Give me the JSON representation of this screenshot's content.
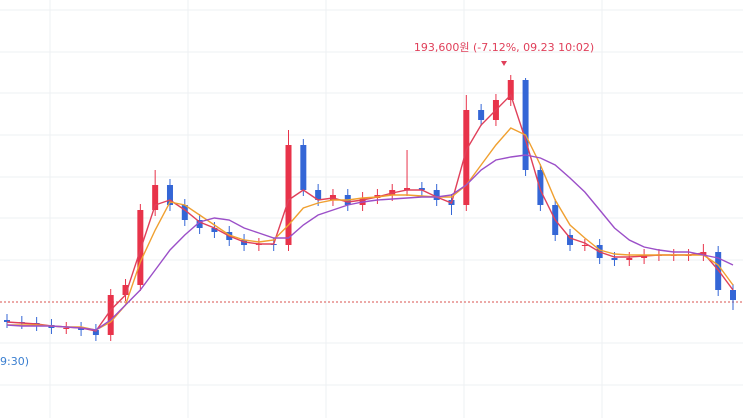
{
  "chart_data": {
    "type": "candlestick",
    "ylim": [
      125000,
      208600
    ],
    "up_color": "#e8334a",
    "down_color": "#3466d6",
    "open": [
      144600,
      144200,
      144000,
      143600,
      143000,
      143000,
      142600,
      141600,
      149600,
      151600,
      166600,
      171600,
      167600,
      164600,
      163000,
      162200,
      160600,
      159600,
      159800,
      159600,
      179600,
      170600,
      168600,
      169600,
      167600,
      169000,
      169600,
      170600,
      171000,
      170600,
      168600,
      167600,
      186600,
      184600,
      188600,
      192600,
      174600,
      167600,
      161600,
      159600,
      159600,
      157000,
      156600,
      157000,
      157600,
      157600,
      157600,
      157600,
      158200,
      150600
    ],
    "high": [
      145800,
      145400,
      145200,
      144800,
      144200,
      144200,
      143800,
      150800,
      152800,
      167800,
      174600,
      172800,
      168800,
      165800,
      164200,
      163400,
      161800,
      161000,
      161000,
      182600,
      180800,
      171800,
      170800,
      170800,
      170200,
      170800,
      171800,
      178600,
      172200,
      171800,
      169800,
      189600,
      187800,
      189800,
      193600,
      193000,
      175800,
      168800,
      162800,
      160800,
      160800,
      158200,
      158200,
      158800,
      158800,
      158800,
      158800,
      159800,
      159400,
      151800
    ],
    "low": [
      143000,
      142800,
      142400,
      141800,
      141800,
      141400,
      140400,
      140400,
      148400,
      150400,
      165400,
      166400,
      163400,
      161800,
      161000,
      159400,
      158400,
      158400,
      158400,
      158400,
      169400,
      167400,
      167400,
      166400,
      166400,
      167800,
      168400,
      169400,
      169400,
      167400,
      165600,
      166400,
      183400,
      183400,
      187400,
      173400,
      166400,
      160400,
      158400,
      158400,
      155800,
      155400,
      155400,
      155800,
      156400,
      156400,
      156400,
      156400,
      149400,
      146600
    ],
    "close": [
      144200,
      144000,
      143600,
      143000,
      143000,
      142600,
      141600,
      149600,
      151600,
      166600,
      171600,
      167600,
      164600,
      163000,
      162200,
      160600,
      159600,
      159800,
      159600,
      179600,
      170600,
      168600,
      169600,
      167600,
      169000,
      169600,
      170600,
      171000,
      170600,
      168600,
      167600,
      186600,
      184600,
      188600,
      192600,
      174600,
      167600,
      161600,
      159600,
      159600,
      157000,
      156600,
      157000,
      157600,
      157600,
      157600,
      157600,
      158200,
      150600,
      148600
    ],
    "series": [
      {
        "color": "#e0405a",
        "values": [
          144200,
          144000,
          143800,
          143400,
          143200,
          143000,
          142400,
          146600,
          149600,
          158600,
          167600,
          168600,
          166600,
          164200,
          163000,
          161400,
          160200,
          159800,
          159800,
          168600,
          170600,
          168600,
          169000,
          168200,
          168600,
          169200,
          170000,
          170600,
          170600,
          169200,
          168000,
          178600,
          183600,
          186600,
          189600,
          180600,
          170600,
          164600,
          161000,
          160000,
          158200,
          157200,
          157200,
          157400,
          157600,
          157600,
          157600,
          158000,
          154600,
          150600
        ]
      },
      {
        "color": "#f0a030",
        "values": [
          143600,
          143600,
          143600,
          143400,
          143200,
          143200,
          142600,
          144200,
          147600,
          156200,
          162600,
          168200,
          167600,
          165600,
          163600,
          161600,
          160600,
          160200,
          160600,
          163600,
          167000,
          168000,
          168600,
          168600,
          169000,
          169200,
          169600,
          169600,
          169400,
          169200,
          169200,
          171600,
          175600,
          179600,
          183000,
          181600,
          175600,
          168600,
          163600,
          161000,
          158600,
          157800,
          157600,
          157600,
          157600,
          157600,
          157600,
          157600,
          155600,
          151600
        ]
      },
      {
        "color": "#9b4fc8",
        "values": [
          143600,
          143400,
          143400,
          143400,
          143200,
          143000,
          142600,
          144600,
          147600,
          150600,
          154600,
          158600,
          161600,
          164200,
          165000,
          164600,
          163000,
          162000,
          161000,
          161000,
          163600,
          165600,
          166600,
          167600,
          168200,
          168600,
          168800,
          169000,
          169200,
          169200,
          169600,
          171600,
          174600,
          176600,
          177200,
          177600,
          177000,
          175600,
          173000,
          170200,
          166600,
          163000,
          160600,
          159200,
          158600,
          158200,
          158200,
          157600,
          157000,
          155600
        ]
      }
    ],
    "reference_line": 148200,
    "reference_color": "#d9534f",
    "high_annotation": "193,600원 (-7.12%, 09.23 10:02)",
    "left_label": "9:30)"
  }
}
